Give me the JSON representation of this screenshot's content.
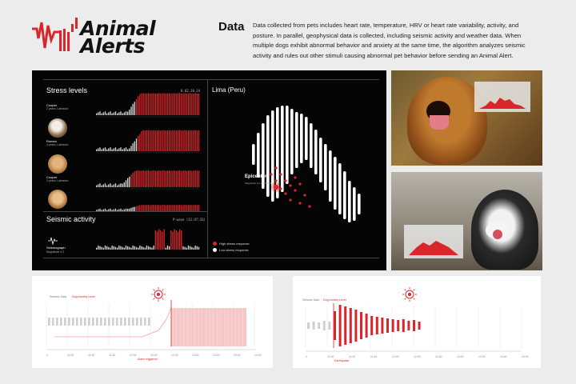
{
  "brand": {
    "name_line1": "Animal",
    "name_line2": "Alerts",
    "accent": "#d8262b"
  },
  "intro": {
    "title": "Data",
    "line1": "Data collected from pets includes heart rate, temperature, HRV or heart rate variability, activity, and",
    "line2": "posture. In parallel, geophysical data is collected, including seismic activity and weather data. When",
    "line3": "multiple dogs exhibit abnormal behavior and anxiety at the same time, the algorithm analyzes seismic",
    "line4": "activity and rules out other stimuli causing abnormal pet behavior before sending an Animal Alert."
  },
  "dashboard": {
    "stress_title": "Stress levels",
    "timestamp": "8.02.10.24",
    "pets": [
      {
        "name": "Cooper",
        "detail": "2 years, Labrador",
        "level": 0.92
      },
      {
        "name": "Romeo",
        "detail": "4 years, Labrador",
        "level": 0.88
      },
      {
        "name": "Cooper",
        "detail": "2 years, Labrador",
        "level": 0.7
      },
      {
        "name": "",
        "detail": "",
        "level": 0.4
      }
    ],
    "seismic_title": "Seismic activity",
    "pwave": "P-wave (12:47:33)",
    "seismograph_label": "Seismograph",
    "magnitude": "Magnitude 4.2",
    "map_title": "Lima (Peru)",
    "epicenter_label": "Epicenter",
    "epicenter_detail": "Magnitude 4.2 at 12:47:33",
    "legend_high": "High stress response",
    "legend_low": "Low stress response"
  },
  "photos": {
    "top_alt": "Golden retriever with overlay",
    "bottom_alt": "Border collie with overlay"
  },
  "panel_left": {
    "legend1": "Seismic Data",
    "legend2": "Dog Anxiety Level",
    "event": "Alarm triggered",
    "ticks": [
      "0",
      "11:00",
      "11:20",
      "11:40",
      "12:00",
      "12:20",
      "12:40",
      "13:00",
      "13:20",
      "13:40",
      "14:00"
    ]
  },
  "panel_right": {
    "legend1": "Seismic Data",
    "legend2": "Dog Anxiety Level",
    "event": "Earthquake",
    "ticks": [
      "0",
      "11:00",
      "11:20",
      "11:40",
      "12:00",
      "12:20",
      "12:40",
      "13:00",
      "13:20",
      "13:40",
      "14:00"
    ]
  }
}
